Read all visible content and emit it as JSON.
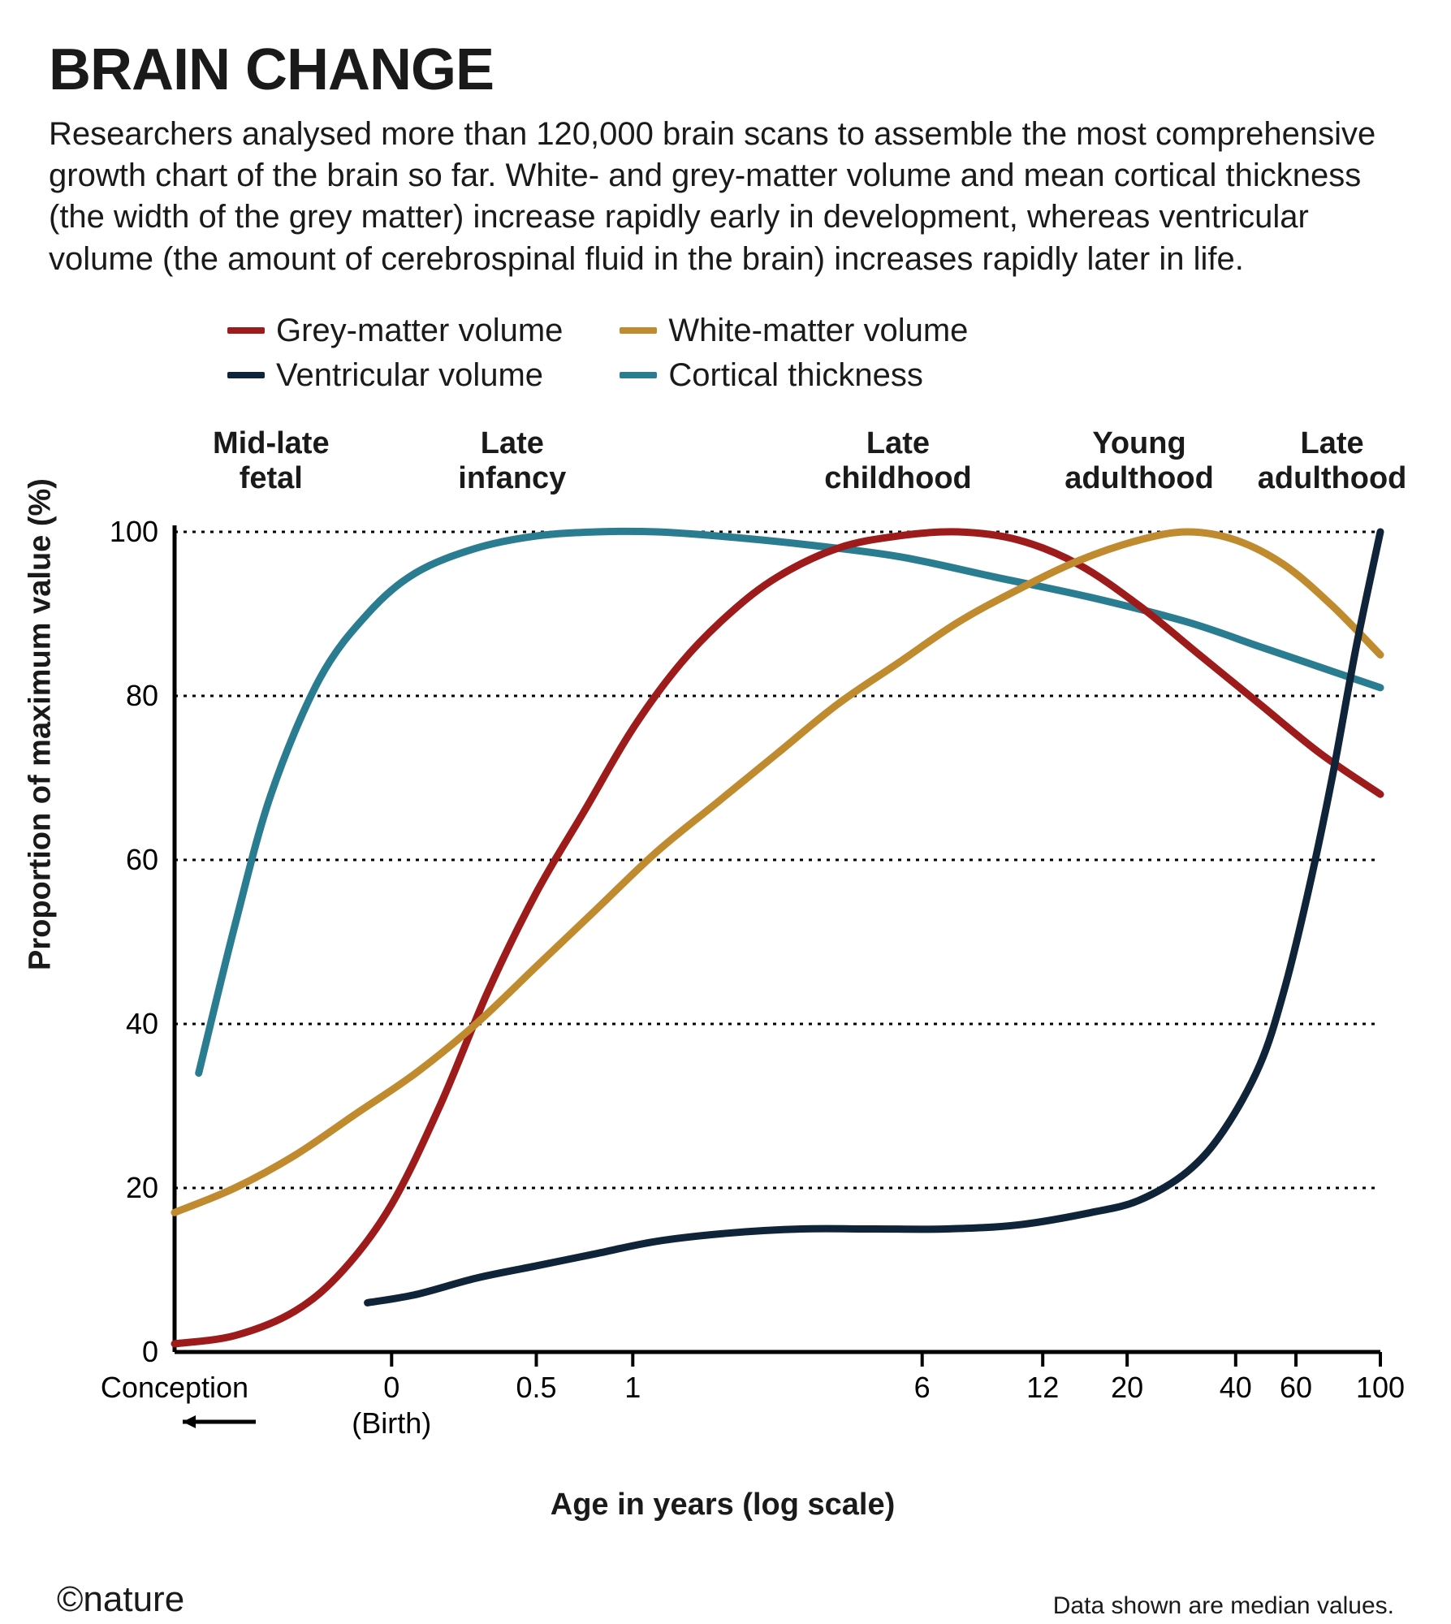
{
  "title": "BRAIN CHANGE",
  "subtitle": "Researchers analysed more than 120,000 brain scans to assemble the most comprehensive growth chart of the brain so far. White- and grey-matter volume and mean cortical thickness (the width of the grey matter) increase rapidly early in development, whereas ventricular volume (the amount of cerebrospinal fluid in the brain) increases rapidly later in life.",
  "legend": {
    "items": [
      {
        "label": "Grey-matter volume",
        "color": "#9e1b1b"
      },
      {
        "label": "White-matter volume",
        "color": "#c08a2e"
      },
      {
        "label": "Ventricular volume",
        "color": "#0f2438"
      },
      {
        "label": "Cortical thickness",
        "color": "#2a7d91"
      }
    ]
  },
  "chart": {
    "type": "line",
    "background_color": "#ffffff",
    "grid_color": "#000000",
    "grid_dash": [
      4,
      7
    ],
    "axis_color": "#000000",
    "line_width": 9,
    "title_fontsize": 72,
    "label_fontsize": 38,
    "tick_fontsize": 36,
    "ylabel": "Proportion of maximum value (%)",
    "xlabel": "Age in years (log scale)",
    "ylim": [
      0,
      100
    ],
    "yticks": [
      0,
      20,
      40,
      60,
      80,
      100
    ],
    "x_scale": "log",
    "x_origin_label": "Conception",
    "x_origin_arrow": true,
    "xticks": [
      {
        "u": 0.0,
        "label": "Conception",
        "sub": ""
      },
      {
        "u": 0.18,
        "label": "0",
        "sub": "(Birth)"
      },
      {
        "u": 0.3,
        "label": "0.5",
        "sub": ""
      },
      {
        "u": 0.38,
        "label": "1",
        "sub": ""
      },
      {
        "u": 0.62,
        "label": "6",
        "sub": ""
      },
      {
        "u": 0.72,
        "label": "12",
        "sub": ""
      },
      {
        "u": 0.79,
        "label": "20",
        "sub": ""
      },
      {
        "u": 0.88,
        "label": "40",
        "sub": ""
      },
      {
        "u": 0.93,
        "label": "60",
        "sub": ""
      },
      {
        "u": 1.0,
        "label": "100",
        "sub": ""
      }
    ],
    "phase_labels": [
      {
        "u": 0.08,
        "line1": "Mid-late",
        "line2": "fetal"
      },
      {
        "u": 0.28,
        "line1": "Late",
        "line2": "infancy"
      },
      {
        "u": 0.6,
        "line1": "Late",
        "line2": "childhood"
      },
      {
        "u": 0.8,
        "line1": "Young",
        "line2": "adulthood"
      },
      {
        "u": 0.96,
        "line1": "Late",
        "line2": "adulthood"
      }
    ],
    "series": [
      {
        "name": "Cortical thickness",
        "color": "#2a7d91",
        "points": [
          [
            0.02,
            34
          ],
          [
            0.05,
            52
          ],
          [
            0.08,
            68
          ],
          [
            0.12,
            82
          ],
          [
            0.16,
            90
          ],
          [
            0.2,
            95
          ],
          [
            0.25,
            98
          ],
          [
            0.3,
            99.5
          ],
          [
            0.35,
            100
          ],
          [
            0.4,
            100
          ],
          [
            0.45,
            99.5
          ],
          [
            0.52,
            98.5
          ],
          [
            0.6,
            97
          ],
          [
            0.68,
            94.5
          ],
          [
            0.76,
            92
          ],
          [
            0.84,
            89
          ],
          [
            0.9,
            86
          ],
          [
            0.95,
            83.5
          ],
          [
            1.0,
            81
          ]
        ]
      },
      {
        "name": "Grey-matter volume",
        "color": "#9e1b1b",
        "points": [
          [
            0.0,
            1
          ],
          [
            0.05,
            2
          ],
          [
            0.1,
            5
          ],
          [
            0.14,
            10
          ],
          [
            0.18,
            18
          ],
          [
            0.22,
            30
          ],
          [
            0.26,
            44
          ],
          [
            0.3,
            56
          ],
          [
            0.34,
            66
          ],
          [
            0.38,
            76
          ],
          [
            0.42,
            84
          ],
          [
            0.46,
            90
          ],
          [
            0.5,
            94.5
          ],
          [
            0.55,
            98
          ],
          [
            0.6,
            99.5
          ],
          [
            0.65,
            100
          ],
          [
            0.7,
            99
          ],
          [
            0.75,
            96
          ],
          [
            0.8,
            91
          ],
          [
            0.85,
            85
          ],
          [
            0.9,
            79
          ],
          [
            0.95,
            73
          ],
          [
            1.0,
            68
          ]
        ]
      },
      {
        "name": "White-matter volume",
        "color": "#c08a2e",
        "points": [
          [
            0.0,
            17
          ],
          [
            0.05,
            20
          ],
          [
            0.1,
            24
          ],
          [
            0.15,
            29
          ],
          [
            0.2,
            34
          ],
          [
            0.25,
            40
          ],
          [
            0.3,
            47
          ],
          [
            0.35,
            54
          ],
          [
            0.4,
            61
          ],
          [
            0.45,
            67
          ],
          [
            0.5,
            73
          ],
          [
            0.55,
            79
          ],
          [
            0.6,
            84
          ],
          [
            0.65,
            89
          ],
          [
            0.7,
            93
          ],
          [
            0.75,
            96.5
          ],
          [
            0.8,
            99
          ],
          [
            0.84,
            100
          ],
          [
            0.88,
            99
          ],
          [
            0.92,
            96
          ],
          [
            0.96,
            91
          ],
          [
            1.0,
            85
          ]
        ]
      },
      {
        "name": "Ventricular volume",
        "color": "#0f2438",
        "points": [
          [
            0.16,
            6
          ],
          [
            0.2,
            7
          ],
          [
            0.25,
            9
          ],
          [
            0.3,
            10.5
          ],
          [
            0.35,
            12
          ],
          [
            0.4,
            13.5
          ],
          [
            0.46,
            14.5
          ],
          [
            0.52,
            15
          ],
          [
            0.58,
            15
          ],
          [
            0.64,
            15
          ],
          [
            0.7,
            15.5
          ],
          [
            0.76,
            17
          ],
          [
            0.8,
            18.5
          ],
          [
            0.84,
            22
          ],
          [
            0.87,
            27
          ],
          [
            0.9,
            35
          ],
          [
            0.92,
            44
          ],
          [
            0.94,
            56
          ],
          [
            0.96,
            70
          ],
          [
            0.98,
            86
          ],
          [
            1.0,
            100
          ]
        ]
      }
    ]
  },
  "copyright": "©nature",
  "footnote": "Data shown are median values."
}
